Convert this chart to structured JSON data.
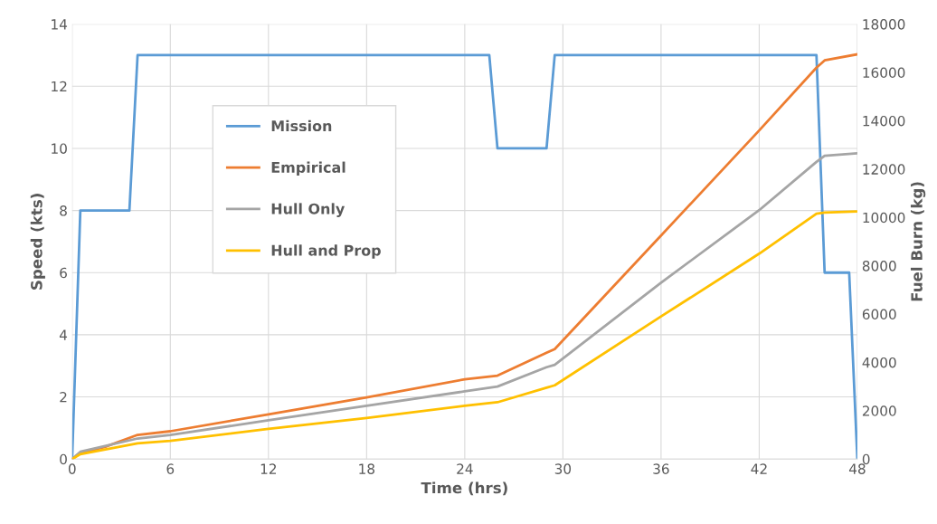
{
  "chart_data": {
    "type": "line",
    "xlabel": "Time (hrs)",
    "ylabel": "Speed (kts)",
    "y2label": "Fuel Burn (kg)",
    "xlim": [
      0,
      48
    ],
    "xticks": [
      0,
      6,
      12,
      18,
      24,
      30,
      36,
      42,
      48
    ],
    "ylim": [
      0,
      14
    ],
    "yticks": [
      0,
      2,
      4,
      6,
      8,
      10,
      12,
      14
    ],
    "y2lim": [
      0,
      18000
    ],
    "y2ticks": [
      0,
      2000,
      4000,
      6000,
      8000,
      10000,
      12000,
      14000,
      16000,
      18000
    ],
    "grid": true,
    "legend": "left",
    "marker": "none",
    "line_style": "solid",
    "series": [
      {
        "name": "Mission",
        "color": "#5b9bd5",
        "x": [
          0,
          0.5,
          3.5,
          4,
          25.5,
          26,
          29,
          29.5,
          45.5,
          46,
          47.5,
          48
        ],
        "values": [
          0,
          8,
          8,
          13,
          13,
          10,
          10,
          13,
          13,
          6,
          6,
          0
        ]
      },
      {
        "name": "Empirical",
        "color": "#ed7d31",
        "axis": "y2",
        "x": [
          0,
          0.5,
          2,
          4,
          6,
          12,
          18,
          24,
          26,
          29,
          29.5,
          36,
          42,
          45.5,
          46,
          48
        ],
        "values": [
          0,
          250,
          500,
          1000,
          1150,
          1850,
          2550,
          3300,
          3450,
          4400,
          4550,
          9250,
          13600,
          16200,
          16500,
          16750
        ]
      },
      {
        "name": "Hull Only",
        "color": "#a5a5a5",
        "axis": "y2",
        "x": [
          0,
          0.5,
          4,
          6,
          12,
          18,
          24,
          26,
          29,
          29.5,
          36,
          42,
          45.5,
          46,
          48
        ],
        "values": [
          0,
          300,
          850,
          1000,
          1600,
          2200,
          2800,
          3000,
          3800,
          3900,
          7300,
          10300,
          12300,
          12550,
          12650
        ]
      },
      {
        "name": "Hull and Prop",
        "color": "#ffc000",
        "axis": "y2",
        "x": [
          0,
          0.5,
          4,
          6,
          12,
          18,
          24,
          26,
          29,
          29.5,
          36,
          42,
          45.5,
          46,
          48
        ],
        "values": [
          0,
          200,
          650,
          750,
          1250,
          1700,
          2200,
          2350,
          2950,
          3050,
          5900,
          8500,
          10150,
          10200,
          10250
        ]
      }
    ]
  }
}
